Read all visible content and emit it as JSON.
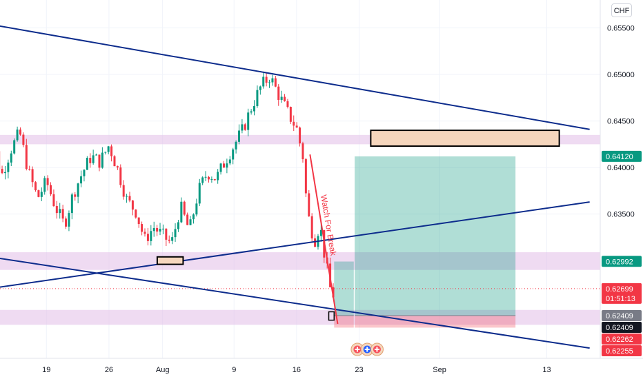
{
  "currency": "CHF",
  "chart_data": {
    "type": "candlestick",
    "ylim": [
      0.6195,
      0.658
    ],
    "y_ticks": [
      0.655,
      0.65,
      0.645,
      0.64,
      0.635
    ],
    "y_tick_labels": [
      "0.65500",
      "0.65000",
      "0.64500",
      "0.64000",
      "0.63500"
    ],
    "x_ticks": [
      {
        "day": 19,
        "label": "19"
      },
      {
        "day": 26,
        "label": "26"
      },
      {
        "day": 32,
        "label": "Aug"
      },
      {
        "day": 40,
        "label": "9"
      },
      {
        "day": 47,
        "label": "16"
      },
      {
        "day": 54,
        "label": "23"
      },
      {
        "day": 63,
        "label": "Sep"
      },
      {
        "day": 75,
        "label": "13"
      }
    ],
    "price_tags": [
      {
        "value": 0.6412,
        "label": "0.64120",
        "color": "#089981",
        "text_color": "#ffffff"
      },
      {
        "value": 0.62992,
        "label": "0.62992",
        "color": "#089981",
        "text_color": "#ffffff"
      },
      {
        "value": 0.62699,
        "label": "0.62699",
        "sublabel": "01:51:13",
        "color": "#f23645",
        "text_color": "#ffffff"
      },
      {
        "value": 0.62409,
        "label": "0.62409",
        "color": "#787b86",
        "text_color": "#ffffff"
      },
      {
        "value": 0.62409,
        "label": "0.62409",
        "color": "#131722",
        "text_color": "#ffffff",
        "stack": true
      },
      {
        "value": 0.62262,
        "label": "0.62262",
        "color": "#f23645",
        "text_color": "#ffffff"
      },
      {
        "value": 0.62255,
        "label": "0.62255",
        "color": "#f23645",
        "text_color": "#ffffff"
      }
    ],
    "zones": [
      {
        "y1": 0.6435,
        "y2": 0.6425,
        "color": "#e1bee7"
      },
      {
        "y1": 0.6309,
        "y2": 0.629,
        "color": "#e1bee7"
      },
      {
        "y1": 0.6247,
        "y2": 0.6231,
        "color": "#e1bee7"
      }
    ],
    "trend_lines": [
      {
        "p1": [
          12.0,
          0.6555
        ],
        "p2": [
          79.8,
          0.6441
        ],
        "color": "#0d2c8c"
      },
      {
        "p1": [
          12.0,
          0.6269
        ],
        "p2": [
          79.8,
          0.6363
        ],
        "color": "#0d2c8c"
      },
      {
        "p1": [
          12.0,
          0.6305
        ],
        "p2": [
          79.8,
          0.6206
        ],
        "color": "#0d2c8c"
      }
    ],
    "annotation": {
      "text": "Watch For Break",
      "p1": [
        48.5,
        0.6414
      ],
      "p2": [
        51.6,
        0.6232
      ],
      "color": "#f23645"
    },
    "supply_box": {
      "x1": 55.3,
      "x2": 76.4,
      "y1": 0.644,
      "y2": 0.6423
    },
    "entry_box": {
      "x1": 31.4,
      "x2": 34.3,
      "y1": 0.6304,
      "y2": 0.6296
    },
    "small_box": {
      "x1": 50.6,
      "x2": 51.2,
      "y1": 0.6245,
      "y2": 0.6236
    },
    "position_long": {
      "x1": 53.5,
      "x2": 71.5,
      "entry": 0.62409,
      "target": 0.6412,
      "stop": 0.6228
    },
    "position_small": {
      "x1": 51.2,
      "x2": 53.4,
      "entry": 0.62409,
      "target": 0.6299,
      "stop": 0.6228
    },
    "current_price": 0.62699,
    "candle_path": [
      [
        12,
        0.6397
      ],
      [
        13,
        0.6428
      ],
      [
        14,
        0.6392
      ],
      [
        15,
        0.6419
      ],
      [
        16,
        0.6438
      ],
      [
        17,
        0.6395
      ],
      [
        18,
        0.6367
      ],
      [
        19,
        0.6385
      ],
      [
        20,
        0.6358
      ],
      [
        21,
        0.6338
      ],
      [
        22,
        0.6372
      ],
      [
        23,
        0.6394
      ],
      [
        24,
        0.6412
      ],
      [
        25,
        0.6406
      ],
      [
        26,
        0.6424
      ],
      [
        27,
        0.6397
      ],
      [
        28,
        0.6365
      ],
      [
        29,
        0.6353
      ],
      [
        30,
        0.6322
      ],
      [
        31,
        0.6336
      ],
      [
        32,
        0.6327
      ],
      [
        33,
        0.6318
      ],
      [
        34,
        0.6358
      ],
      [
        35,
        0.6332
      ],
      [
        36,
        0.6374
      ],
      [
        37,
        0.6395
      ],
      [
        38,
        0.6388
      ],
      [
        39,
        0.6407
      ],
      [
        40,
        0.6424
      ],
      [
        41,
        0.6441
      ],
      [
        42,
        0.6466
      ],
      [
        43,
        0.6487
      ],
      [
        44,
        0.6498
      ],
      [
        45,
        0.6478
      ],
      [
        46,
        0.6459
      ],
      [
        47,
        0.6442
      ],
      [
        47.7,
        0.6412
      ],
      [
        48.2,
        0.6352
      ],
      [
        49,
        0.6321
      ],
      [
        49.6,
        0.6339
      ],
      [
        50.2,
        0.6301
      ],
      [
        50.8,
        0.6268
      ],
      [
        51.2,
        0.6262
      ]
    ],
    "event_icons": [
      {
        "day": 53.8,
        "color": "#f7525f"
      },
      {
        "day": 54.9,
        "color": "#2962ff"
      },
      {
        "day": 56.0,
        "color": "#f7525f"
      }
    ]
  }
}
